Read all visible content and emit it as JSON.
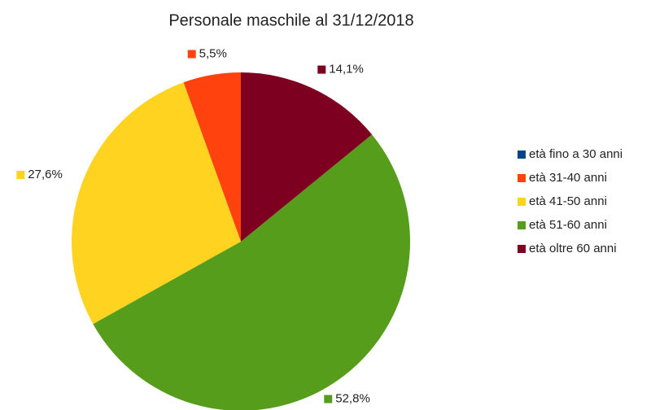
{
  "chart_data": {
    "type": "pie",
    "title": "Personale maschile al 31/12/2018",
    "categories": [
      "età fino a 30 anni",
      "età 31-40 anni",
      "età 41-50 anni",
      "età 51-60 anni",
      "età oltre 60 anni"
    ],
    "values": [
      0,
      5.5,
      27.6,
      52.8,
      14.1
    ],
    "value_labels": [
      null,
      "5,5%",
      "27,6%",
      "52,8%",
      "14,1%"
    ],
    "colors": [
      "#004586",
      "#ff420e",
      "#ffd320",
      "#579d1c",
      "#7e0021"
    ],
    "direction": "counterclockwise",
    "legend": "right"
  }
}
